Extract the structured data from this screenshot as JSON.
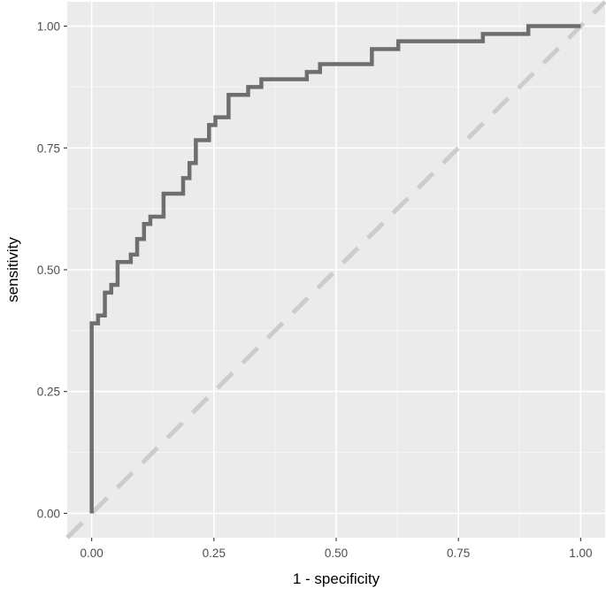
{
  "chart_data": {
    "type": "line",
    "title": "",
    "xlabel": "1 - specificity",
    "ylabel": "sensitivity",
    "xlim": [
      -0.05,
      1.05
    ],
    "ylim": [
      -0.05,
      1.05
    ],
    "x_ticks": [
      0.0,
      0.25,
      0.5,
      0.75,
      1.0
    ],
    "x_tick_labels": [
      "0.00",
      "0.25",
      "0.50",
      "0.75",
      "1.00"
    ],
    "y_ticks": [
      0.0,
      0.25,
      0.5,
      0.75,
      1.0
    ],
    "y_tick_labels": [
      "0.00",
      "0.25",
      "0.50",
      "0.75",
      "1.00"
    ],
    "grid": true,
    "legend": "none",
    "colors": {
      "panel": "#ebebeb",
      "grid_major": "#ffffff",
      "grid_minor": "#f5f5f5",
      "roc_line": "#6e6e6e",
      "reference_line": "#cccccc"
    },
    "series": [
      {
        "style": "step",
        "points": [
          [
            0.0,
            0.0
          ],
          [
            0.0,
            0.39
          ],
          [
            0.013,
            0.39
          ],
          [
            0.013,
            0.406
          ],
          [
            0.027,
            0.406
          ],
          [
            0.027,
            0.453
          ],
          [
            0.04,
            0.453
          ],
          [
            0.04,
            0.469
          ],
          [
            0.053,
            0.469
          ],
          [
            0.053,
            0.516
          ],
          [
            0.08,
            0.516
          ],
          [
            0.08,
            0.531
          ],
          [
            0.093,
            0.531
          ],
          [
            0.093,
            0.563
          ],
          [
            0.107,
            0.563
          ],
          [
            0.107,
            0.594
          ],
          [
            0.12,
            0.594
          ],
          [
            0.12,
            0.609
          ],
          [
            0.147,
            0.609
          ],
          [
            0.147,
            0.656
          ],
          [
            0.187,
            0.656
          ],
          [
            0.187,
            0.688
          ],
          [
            0.2,
            0.688
          ],
          [
            0.2,
            0.719
          ],
          [
            0.213,
            0.719
          ],
          [
            0.213,
            0.766
          ],
          [
            0.24,
            0.766
          ],
          [
            0.24,
            0.797
          ],
          [
            0.253,
            0.797
          ],
          [
            0.253,
            0.813
          ],
          [
            0.28,
            0.813
          ],
          [
            0.28,
            0.859
          ],
          [
            0.32,
            0.859
          ],
          [
            0.32,
            0.875
          ],
          [
            0.347,
            0.875
          ],
          [
            0.347,
            0.891
          ],
          [
            0.44,
            0.891
          ],
          [
            0.44,
            0.906
          ],
          [
            0.467,
            0.906
          ],
          [
            0.467,
            0.922
          ],
          [
            0.573,
            0.922
          ],
          [
            0.573,
            0.953
          ],
          [
            0.627,
            0.953
          ],
          [
            0.627,
            0.969
          ],
          [
            0.8,
            0.969
          ],
          [
            0.8,
            0.984
          ],
          [
            0.893,
            0.984
          ],
          [
            0.893,
            1.0
          ],
          [
            1.0,
            1.0
          ]
        ]
      },
      {
        "style": "dashed-diagonal",
        "points": [
          [
            -0.05,
            -0.05
          ],
          [
            1.05,
            1.05
          ]
        ]
      }
    ]
  }
}
